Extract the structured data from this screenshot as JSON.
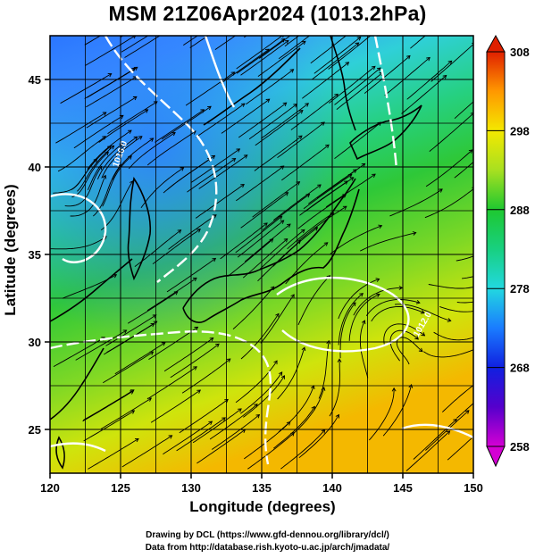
{
  "title": "MSM 21Z06Apr2024 (1013.2hPa)",
  "x_axis": {
    "label": "Longitude (degrees)",
    "range": [
      120,
      150
    ],
    "ticks": [
      "120",
      "125",
      "130",
      "135",
      "140",
      "145",
      "150"
    ]
  },
  "y_axis": {
    "label": "Latitude  (degrees)",
    "range": [
      22.5,
      47.5
    ],
    "ticks": [
      "25",
      "30",
      "35",
      "40",
      "45"
    ]
  },
  "colorbar": {
    "range": [
      258,
      308
    ],
    "tick_labels": [
      "308",
      "298",
      "288",
      "278",
      "268",
      "258"
    ]
  },
  "contour_labels": [
    "1016.0",
    "1012.0"
  ],
  "credits": {
    "line1": "Drawing by DCL (https://www.gfd-dennou.org/library/dcl/)",
    "line2": "Data from http://database.rish.kyoto-u.ac.jp/arch/jmadata/"
  }
}
